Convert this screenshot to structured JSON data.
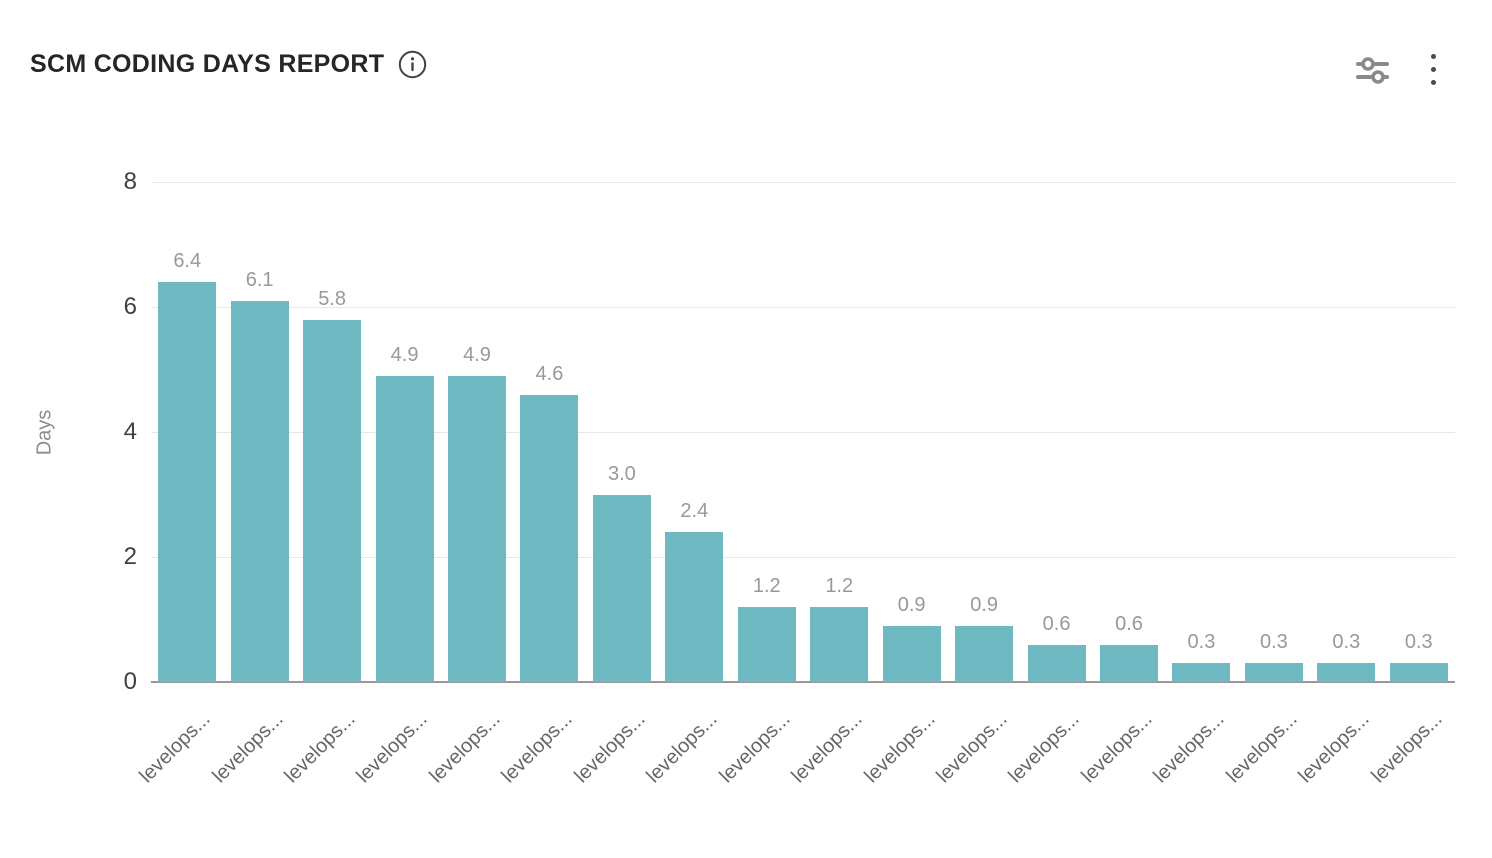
{
  "header": {
    "title": "SCM CODING DAYS REPORT",
    "info_icon": "info-icon",
    "actions": {
      "filters_icon": "filters-icon",
      "menu_icon": "kebab-menu-icon"
    }
  },
  "chart_data": {
    "type": "bar",
    "title": "SCM CODING DAYS REPORT",
    "xlabel": "",
    "ylabel": "Days",
    "ylim": [
      0,
      8
    ],
    "yticks": [
      0,
      2,
      4,
      6,
      8
    ],
    "grid": true,
    "legend": false,
    "categories": [
      "levelops...",
      "levelops...",
      "levelops...",
      "levelops...",
      "levelops...",
      "levelops...",
      "levelops...",
      "levelops...",
      "levelops...",
      "levelops...",
      "levelops...",
      "levelops...",
      "levelops...",
      "levelops...",
      "levelops...",
      "levelops...",
      "levelops...",
      "levelops..."
    ],
    "values": [
      6.4,
      6.1,
      5.8,
      4.9,
      4.9,
      4.6,
      3.0,
      2.4,
      1.2,
      1.2,
      0.9,
      0.9,
      0.6,
      0.6,
      0.3,
      0.3,
      0.3,
      0.3
    ],
    "value_labels": [
      "6.4",
      "6.1",
      "5.8",
      "4.9",
      "4.9",
      "4.6",
      "3.0",
      "2.4",
      "1.2",
      "1.2",
      "0.9",
      "0.9",
      "0.6",
      "0.6",
      "0.3",
      "0.3",
      "0.3",
      "0.3"
    ]
  },
  "colors": {
    "bar": "#6fb9c2",
    "grid": "#e8e8e8",
    "axis_line": "#999999",
    "y_tick_label": "#404040",
    "value_label": "#999999",
    "category_label": "#666666",
    "axis_title": "#8c8c8c",
    "title": "#262626",
    "icon": "#8a8a8a"
  }
}
